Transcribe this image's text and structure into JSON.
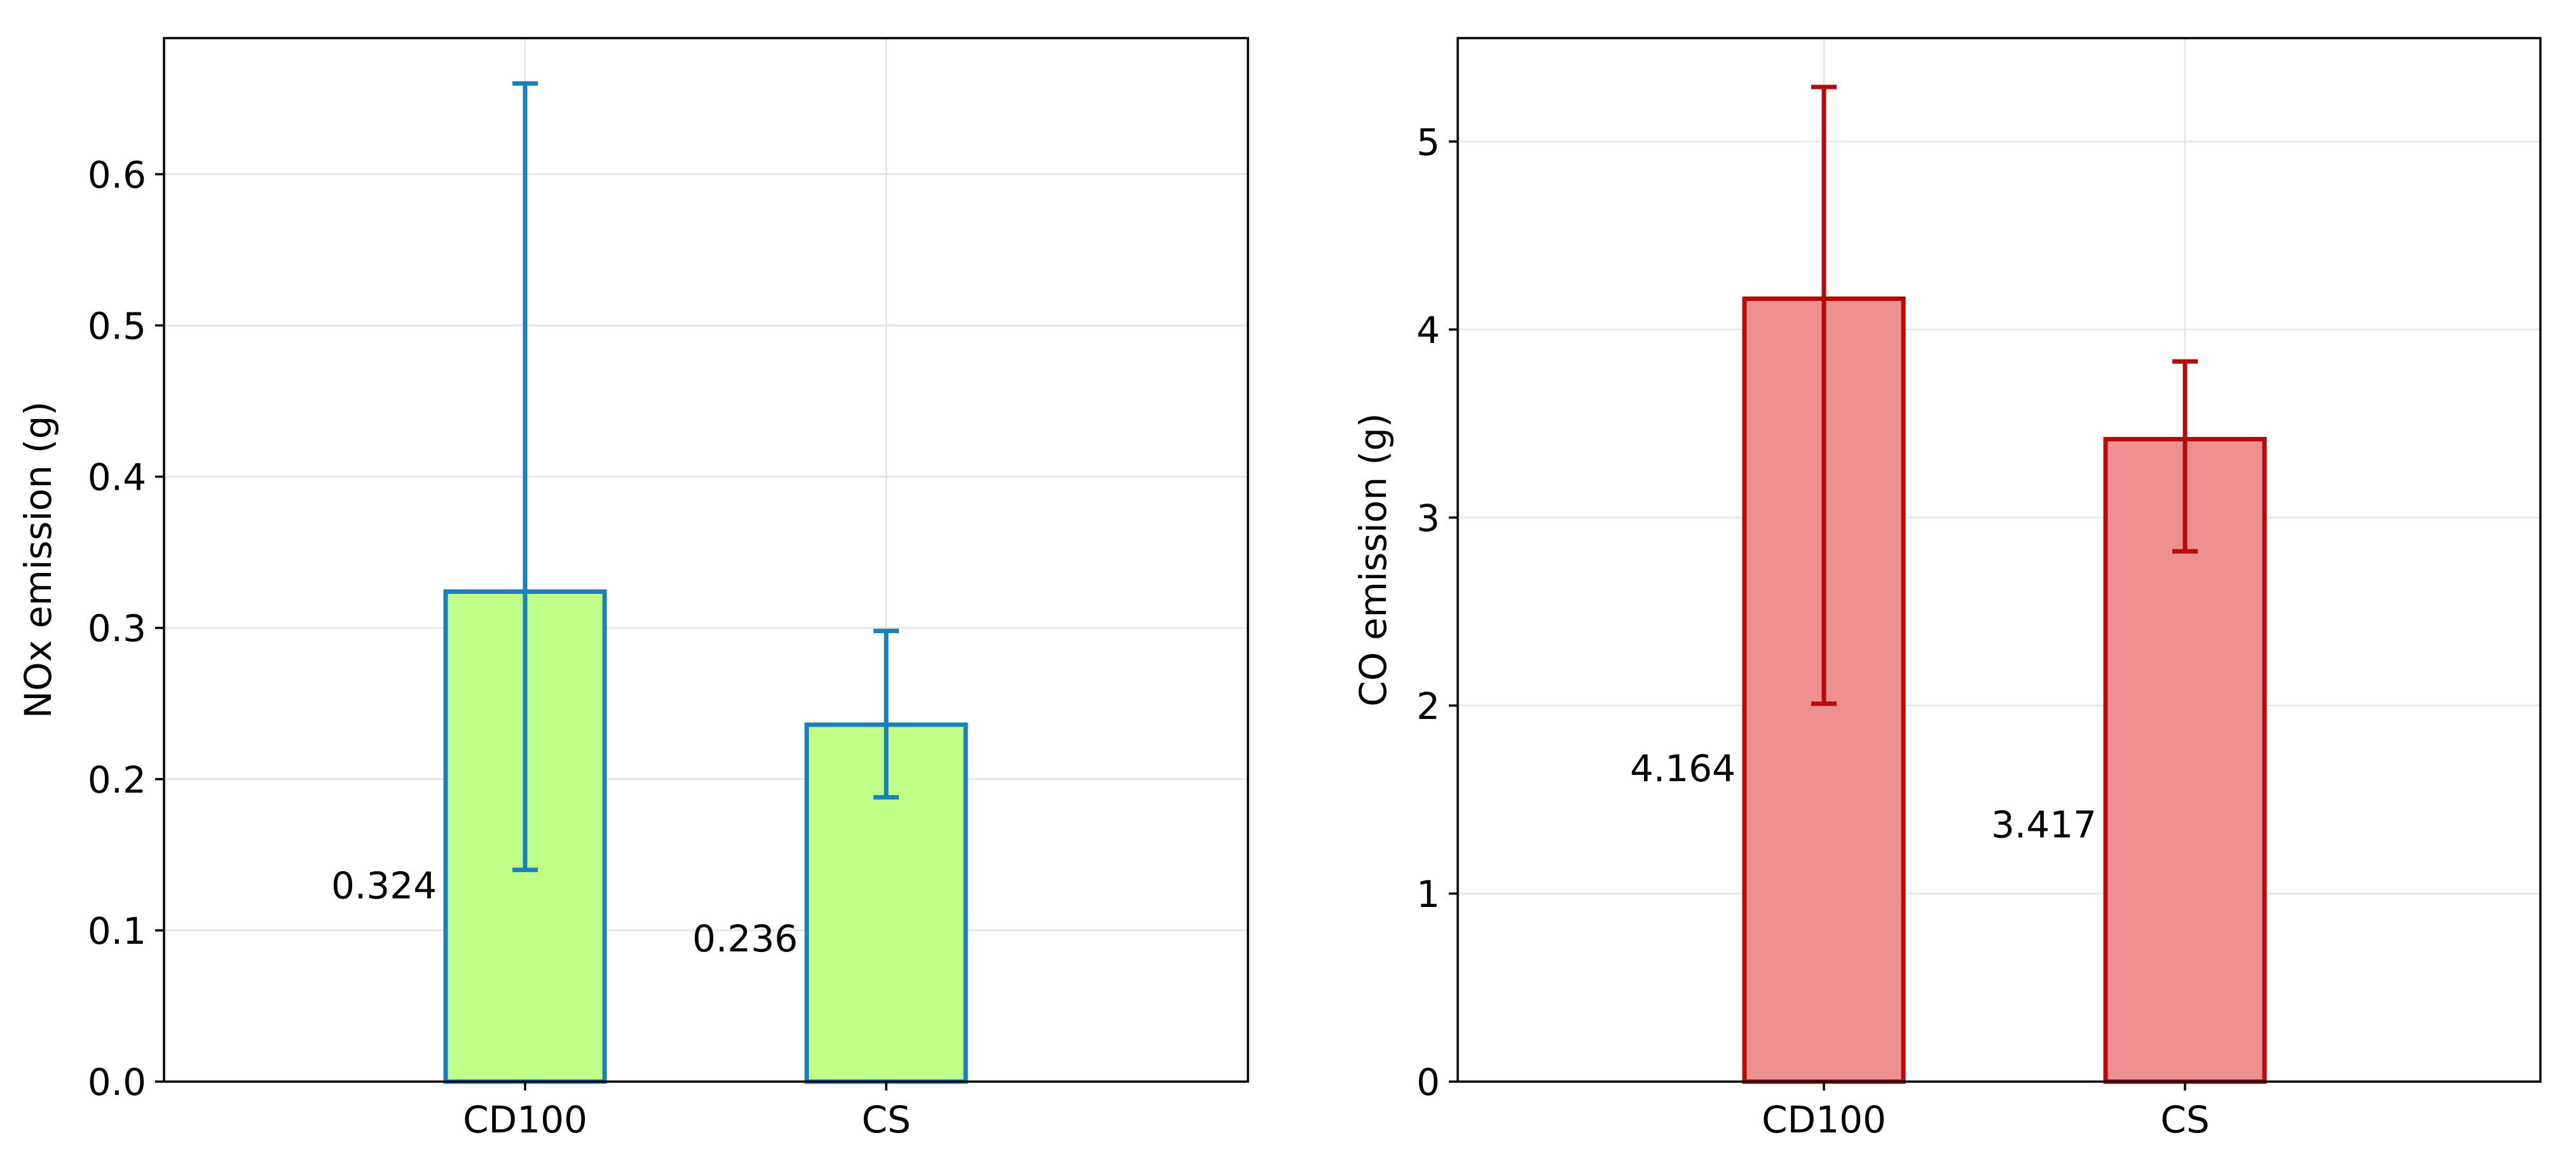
{
  "chart_data": [
    {
      "type": "bar",
      "title": "",
      "xlabel": "",
      "ylabel": "NOx emission (g)",
      "categories": [
        "CD100",
        "CS"
      ],
      "values": [
        0.324,
        0.236
      ],
      "value_labels": [
        "0.324",
        "0.236"
      ],
      "error_low": [
        0.14,
        0.188
      ],
      "error_high": [
        0.66,
        0.298
      ],
      "ylim": [
        0,
        0.69
      ],
      "yticks": [
        0.0,
        0.1,
        0.2,
        0.3,
        0.4,
        0.5,
        0.6
      ],
      "ytick_labels": [
        "0.0",
        "0.1",
        "0.2",
        "0.3",
        "0.4",
        "0.5",
        "0.6"
      ],
      "grid": true,
      "colors": {
        "fill": "#bfff87",
        "edge": "#1a80bb",
        "error": "#1a80bb"
      }
    },
    {
      "type": "bar",
      "title": "",
      "xlabel": "",
      "ylabel": "CO emission (g)",
      "categories": [
        "CD100",
        "CS"
      ],
      "values": [
        4.164,
        3.417
      ],
      "value_labels": [
        "4.164",
        "3.417"
      ],
      "error_low": [
        2.01,
        2.82
      ],
      "error_high": [
        5.29,
        3.83
      ],
      "ylim": [
        0,
        5.55
      ],
      "yticks": [
        0,
        1,
        2,
        3,
        4,
        5
      ],
      "ytick_labels": [
        "0",
        "1",
        "2",
        "3",
        "4",
        "5"
      ],
      "grid": true,
      "colors": {
        "fill": "#ee9090",
        "edge": "#b50b0b",
        "error": "#b50b0b"
      }
    }
  ]
}
